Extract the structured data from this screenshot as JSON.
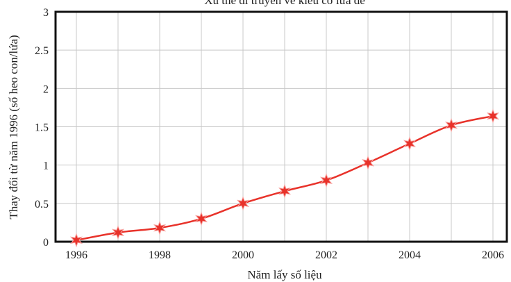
{
  "chart_data": {
    "type": "line",
    "title": "Xu thế di truyền về kiểu cỡ lứa đẻ",
    "xlabel": "Năm lấy số liệu",
    "ylabel": "Thay đổi từ năm 1996 (số heo con/lứa)",
    "xlim": [
      1996,
      2006
    ],
    "ylim": [
      0,
      3
    ],
    "x_ticks": [
      "1996",
      "1998",
      "2000",
      "2002",
      "2004",
      "2006"
    ],
    "y_ticks": [
      "0",
      "0.5",
      "1",
      "1.5",
      "2",
      "2.5",
      "3"
    ],
    "grid": true,
    "legend": "none",
    "series": [
      {
        "color": "#e8322a",
        "marker": "star",
        "x": [
          1996,
          1997,
          1998,
          1999,
          2000,
          2001,
          2002,
          2003,
          2004,
          2005,
          2006
        ],
        "y": [
          0.02,
          0.12,
          0.18,
          0.3,
          0.5,
          0.66,
          0.8,
          1.03,
          1.28,
          1.52,
          1.64
        ]
      }
    ]
  }
}
